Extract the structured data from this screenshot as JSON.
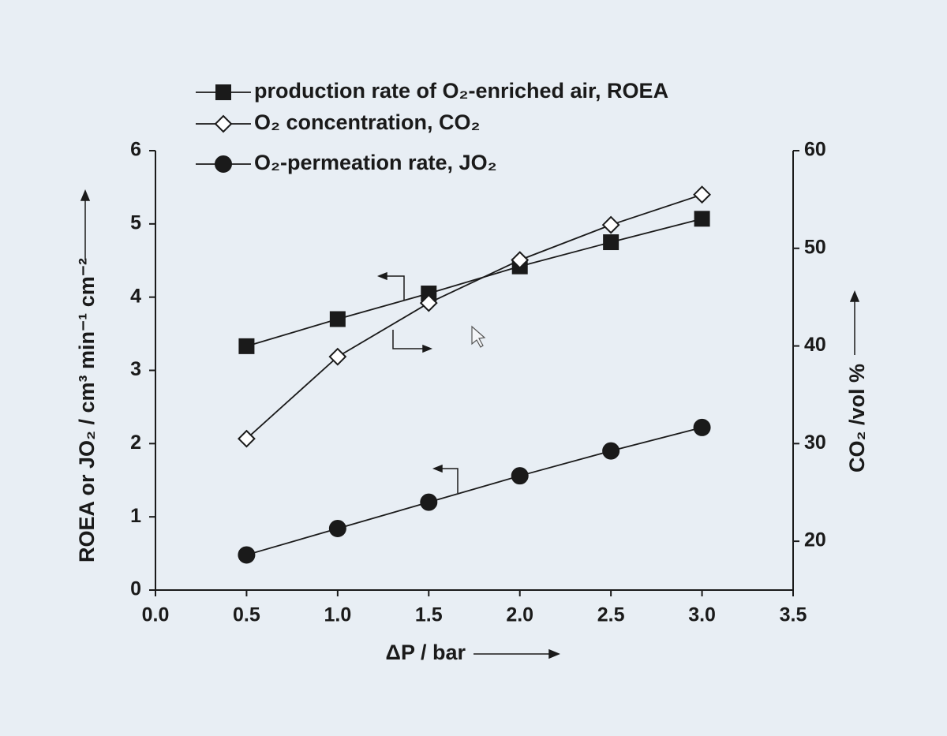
{
  "chart_data": {
    "type": "line",
    "x": [
      0.5,
      1.0,
      1.5,
      2.0,
      2.5,
      3.0
    ],
    "series": [
      {
        "name": "production rate of O₂-enriched air, ROEA",
        "color": "#1a1a1a",
        "marker": "square",
        "filled": true,
        "values": [
          3.33,
          3.7,
          4.05,
          4.42,
          4.75,
          5.07
        ]
      },
      {
        "name": "O₂ concentration, CO₂",
        "color": "#1a1a1a",
        "marker": "diamond",
        "filled": false,
        "axis": "y2",
        "values": [
          30.5,
          38.9,
          44.4,
          48.8,
          52.4,
          55.5
        ]
      },
      {
        "name": "O₂-permeation rate, JO₂",
        "color": "#1a1a1a",
        "marker": "circle",
        "filled": true,
        "values": [
          0.48,
          0.84,
          1.2,
          1.56,
          1.9,
          2.22
        ]
      }
    ],
    "x_label": "ΔP / bar",
    "y_label": "ROEA or JO₂ / cm³ min⁻¹ cm⁻²",
    "y2_label": "CO₂ /vol %",
    "xlim": [
      0,
      3.5
    ],
    "xticks": [
      {
        "value": 0,
        "label": "0.0"
      },
      0.5,
      {
        "value": 1,
        "label": "1.0"
      },
      1.5,
      {
        "value": 2,
        "label": "2.0"
      },
      2.5,
      {
        "value": 3,
        "label": "3.0"
      },
      3.5
    ],
    "ylim": [
      0,
      6
    ],
    "yticks": [
      0,
      1,
      2,
      3,
      4,
      5,
      6
    ],
    "y2lim": [
      15,
      60
    ],
    "y2ticks": [
      20,
      30,
      40,
      50,
      60
    ],
    "grid": false,
    "legend": "upper left"
  }
}
